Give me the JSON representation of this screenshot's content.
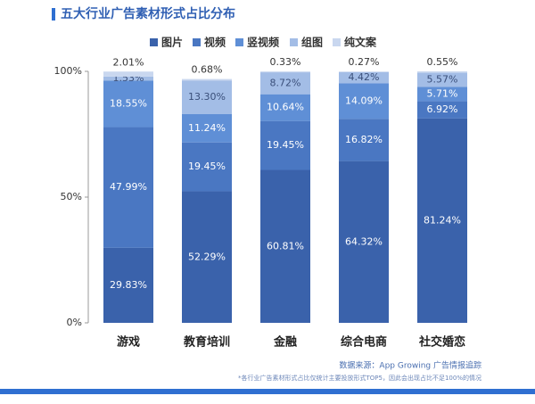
{
  "chart_data": {
    "type": "stacked_bar",
    "title": "五大行业广告素材形式占比分布",
    "categories": [
      "游戏",
      "教育培训",
      "金融",
      "综合电商",
      "社交婚恋"
    ],
    "series": [
      {
        "name": "图片",
        "color": "#3a62ab",
        "values": [
          29.83,
          52.29,
          60.81,
          64.32,
          81.24
        ],
        "value_labels": [
          "29.83%",
          "52.29%",
          "60.81%",
          "64.32%",
          "81.24%"
        ]
      },
      {
        "name": "视频",
        "color": "#4a77c2",
        "values": [
          47.99,
          19.45,
          19.45,
          16.82,
          6.92
        ],
        "value_labels": [
          "47.99%",
          "19.45%",
          "19.45%",
          "16.82%",
          "6.92%"
        ]
      },
      {
        "name": "竖视频",
        "color": "#5f8fd6",
        "values": [
          18.55,
          11.24,
          10.64,
          14.09,
          5.71
        ],
        "value_labels": [
          "18.55%",
          "11.24%",
          "10.64%",
          "14.09%",
          "5.71%"
        ]
      },
      {
        "name": "组图",
        "color": "#a3bde6",
        "values": [
          1.53,
          13.3,
          8.72,
          4.42,
          5.57
        ],
        "value_labels": [
          "1.53%",
          "13.30%",
          "8.72%",
          "4.42%",
          "5.57%"
        ]
      },
      {
        "name": "纯文案",
        "color": "#c9d7ef",
        "values": [
          2.01,
          0.68,
          0.33,
          0.27,
          0.55
        ],
        "value_labels": [
          "2.01%",
          "0.68%",
          "0.33%",
          "0.27%",
          "0.55%"
        ]
      }
    ],
    "ylim": [
      0,
      100
    ],
    "yticks": [
      {
        "value": 0,
        "label": "0%"
      },
      {
        "value": 50,
        "label": "50%"
      },
      {
        "value": 100,
        "label": "100%"
      }
    ],
    "source": "数据来源：App Growing 广告情报追踪",
    "footnote": "*各行业广告素材形式占比仅统计主要投放形式TOP5，因此会出现占比不足100%的情况"
  }
}
